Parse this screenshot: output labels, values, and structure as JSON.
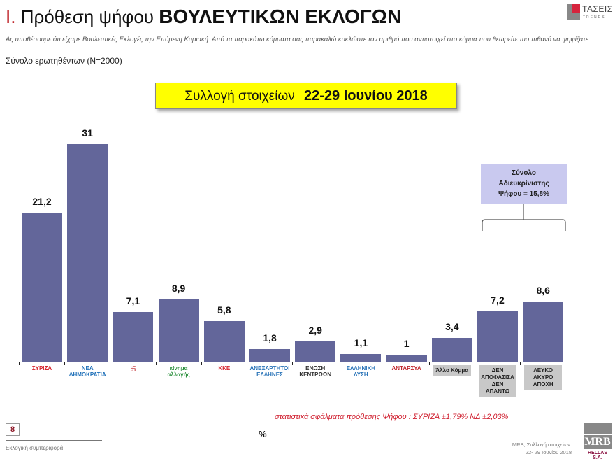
{
  "header": {
    "title_roman": "I.",
    "title_text": "Πρόθεση ψήφου",
    "title_caps": "ΒΟΥΛΕΥΤΙΚΩΝ ΕΚΛΟΓΩΝ",
    "question": "Ας υποθέσουμε ότι είχαμε Βουλευτικές Εκλογές την Επόμενη Κυριακή. Από τα παρακάτω κόμματα σας παρακαλώ κυκλώστε τον αριθμό που αντιστοιχεί στο κόμμα που θεωρείτε πιο πιθανό να ψηφίζατε.",
    "base": "Σύνολο ερωτηθέντων (N=2000)",
    "brand_logo": {
      "name": "ΤΑΣΕΙΣ",
      "sub": "TRENDS"
    }
  },
  "datebox": {
    "label": "Συλλογή στοιχείων",
    "dates": "22-29 Ιουνίου 2018"
  },
  "undecided_box": {
    "line1": "Σύνολο",
    "line2": "Αδιευκρίνιστης",
    "line3": "Ψήφου = 15,8%"
  },
  "error_note": "στατιστικά σφάλματα πρόθεσης Ψήφου : ΣΥΡΙΖΑ ±1,79% ΝΔ ±2,03%",
  "unit_label": "%",
  "footer": {
    "page": "8",
    "left": "Εκλογική συμπεριφορά",
    "right_line1": "MRB, Συλλογή στοιχείων:",
    "right_line2": "22- 29 Ιουνίου 2018",
    "mrb": "MRB",
    "mrb_sub": "HELLAS S.A."
  },
  "colors": {
    "bar": "#63669a",
    "accent_red": "#c0282d",
    "datebox_bg": "#ffff00",
    "undecided_bg": "#c9c9ef"
  },
  "chart_data": {
    "type": "bar",
    "title": "Πρόθεση ψήφου ΒΟΥΛΕΥΤΙΚΩΝ ΕΚΛΟΓΩΝ",
    "xlabel": "",
    "ylabel": "%",
    "ylim": [
      0,
      33
    ],
    "grid": false,
    "categories": [
      "ΣΥΡΙΖΑ",
      "ΝΕΑ ΔΗΜΟΚΡΑΤΙΑ",
      "ΧΡΥΣΗ ΑΥΓΗ",
      "ΚΙΝΗΜΑ ΑΛΛΑΓΗΣ",
      "ΚΚΕ",
      "ΑΝΕΞΑΡΤΗΤΟΙ ΕΛΛΗΝΕΣ",
      "ΕΝΩΣΗ ΚΕΝΤΡΩΩΝ",
      "ΕΛΛΗΝΙΚΗ ΛΥΣΗ",
      "ΑΝΤΑΡΣΥΑ",
      "Άλλο Κόμμα",
      "ΔΕΝ ΑΠΟΦΑΣΙΣΑ ΔΕΝ ΑΠΑΝΤΩ",
      "ΛΕΥΚΟ ΑΚΥΡΟ ΑΠΟΧΗ"
    ],
    "values": [
      21.2,
      31,
      7.1,
      8.9,
      5.8,
      1.8,
      2.9,
      1.1,
      1,
      3.4,
      7.2,
      8.6
    ],
    "value_labels": [
      "21,2",
      "31",
      "7,1",
      "8,9",
      "5,8",
      "1,8",
      "2,9",
      "1,1",
      "1",
      "3,4",
      "7,2",
      "8,6"
    ],
    "annotations": [
      "Σύνολο Αδιευκρίνιστης Ψήφου = 15,8%",
      "στατιστικά σφάλματα πρόθεσης Ψήφου : ΣΥΡΙΖΑ ±1,79% ΝΔ ±2,03%"
    ]
  },
  "logos": [
    {
      "text": "ΣΥΡΙΖΑ",
      "color": "#d8262e"
    },
    {
      "text": "ΝΕΑ ΔΗΜΟΚΡΑΤΙΑ",
      "color": "#1d6fb8"
    },
    {
      "text": "卐",
      "color": "#c0282d"
    },
    {
      "text": "κίνημα αλλαγής",
      "color": "#2a8f3c"
    },
    {
      "text": "ΚΚΕ",
      "color": "#d8262e"
    },
    {
      "text": "ΑΝΕΞΑΡΤΗΤΟΙ ΕΛΛΗΝΕΣ",
      "color": "#2a74b8"
    },
    {
      "text": "ΕΝΩΣΗ ΚΕΝΤΡΩΩΝ",
      "color": "#333333"
    },
    {
      "text": "ΕΛΛΗΝΙΚΗ ΛΥΣΗ",
      "color": "#2a74b8"
    },
    {
      "text": "ΑΝΤΑΡΣΥΑ",
      "color": "#c0282d"
    },
    {
      "text": "Άλλο Κόμμα",
      "grey": true
    },
    {
      "text": "ΔΕΝ ΑΠΟΦΑΣΙΣΑ ΔΕΝ ΑΠΑΝΤΩ",
      "grey": true
    },
    {
      "text": "ΛΕΥΚΟ ΑΚΥΡΟ ΑΠΟΧΗ",
      "grey": true
    }
  ]
}
